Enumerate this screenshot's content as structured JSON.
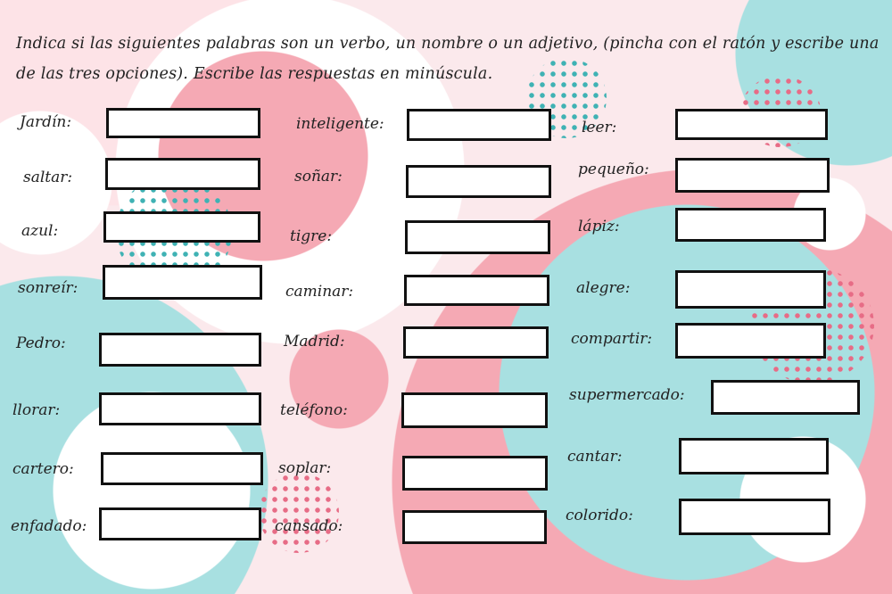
{
  "instructions": "Indica si las siguientes palabras son un verbo, un nombre o un adjetivo, (pincha con el ratón y escribe una de las tres opciones). Escribe las respuestas en minúscula.",
  "colors": {
    "pink": "#f4a7b2",
    "teal": "#9fdfe0",
    "white": "#ffffff",
    "background": "#fbe9ec"
  },
  "items": [
    {
      "word": "Jardín:",
      "value": ""
    },
    {
      "word": "saltar:",
      "value": ""
    },
    {
      "word": "azul:",
      "value": ""
    },
    {
      "word": "sonreír:",
      "value": ""
    },
    {
      "word": "Pedro:",
      "value": ""
    },
    {
      "word": "llorar:",
      "value": ""
    },
    {
      "word": "cartero:",
      "value": ""
    },
    {
      "word": "enfadado:",
      "value": ""
    },
    {
      "word": "inteligente:",
      "value": ""
    },
    {
      "word": "soñar:",
      "value": ""
    },
    {
      "word": "tigre:",
      "value": ""
    },
    {
      "word": "caminar:",
      "value": ""
    },
    {
      "word": "Madrid:",
      "value": ""
    },
    {
      "word": "teléfono:",
      "value": ""
    },
    {
      "word": "soplar:",
      "value": ""
    },
    {
      "word": "cansado:",
      "value": ""
    },
    {
      "word": "leer:",
      "value": ""
    },
    {
      "word": "pequeño:",
      "value": ""
    },
    {
      "word": "lápiz:",
      "value": ""
    },
    {
      "word": "alegre:",
      "value": ""
    },
    {
      "word": "compartir:",
      "value": ""
    },
    {
      "word": "supermercado:",
      "value": ""
    },
    {
      "word": "cantar:",
      "value": ""
    },
    {
      "word": "colorido:",
      "value": ""
    }
  ]
}
